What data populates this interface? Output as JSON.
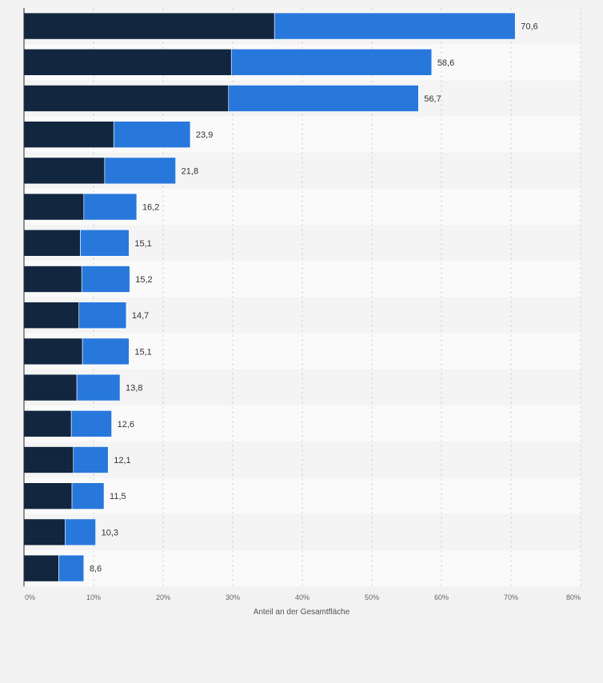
{
  "chart_data": {
    "type": "bar",
    "orientation": "horizontal",
    "stacked": true,
    "xlabel": "Anteil an der Gesamtfläche",
    "xlim": [
      0,
      80
    ],
    "x_ticks": [
      "0%",
      "10%",
      "20%",
      "30%",
      "40%",
      "50%",
      "60%",
      "70%",
      "80%"
    ],
    "grid": true,
    "series": [
      {
        "values": [
          36.0,
          29.8,
          29.4,
          12.9,
          11.6,
          8.6,
          8.1,
          8.3,
          7.9,
          8.4,
          7.6,
          6.8,
          7.1,
          6.9,
          5.9,
          5.0
        ]
      },
      {
        "values": [
          34.6,
          28.8,
          27.3,
          11.0,
          10.2,
          7.6,
          7.0,
          6.9,
          6.8,
          6.7,
          6.2,
          5.8,
          5.0,
          4.6,
          4.4,
          3.6
        ]
      }
    ],
    "totals": [
      "70,6",
      "58,6",
      "56,7",
      "23,9",
      "21,8",
      "16,2",
      "15,1",
      "15,2",
      "14,7",
      "15,1",
      "13,8",
      "12,6",
      "12,1",
      "11,5",
      "10,3",
      "8,6"
    ],
    "colors": {
      "series": [
        "#12263f",
        "#2878dc"
      ],
      "row_even": "#f4f4f4",
      "row_odd": "#fafafa",
      "grid": "#d9d9d9",
      "axis": "#2b2b2b",
      "text": "#333333",
      "tick_text": "#666666",
      "background": "#f2f2f2"
    }
  }
}
